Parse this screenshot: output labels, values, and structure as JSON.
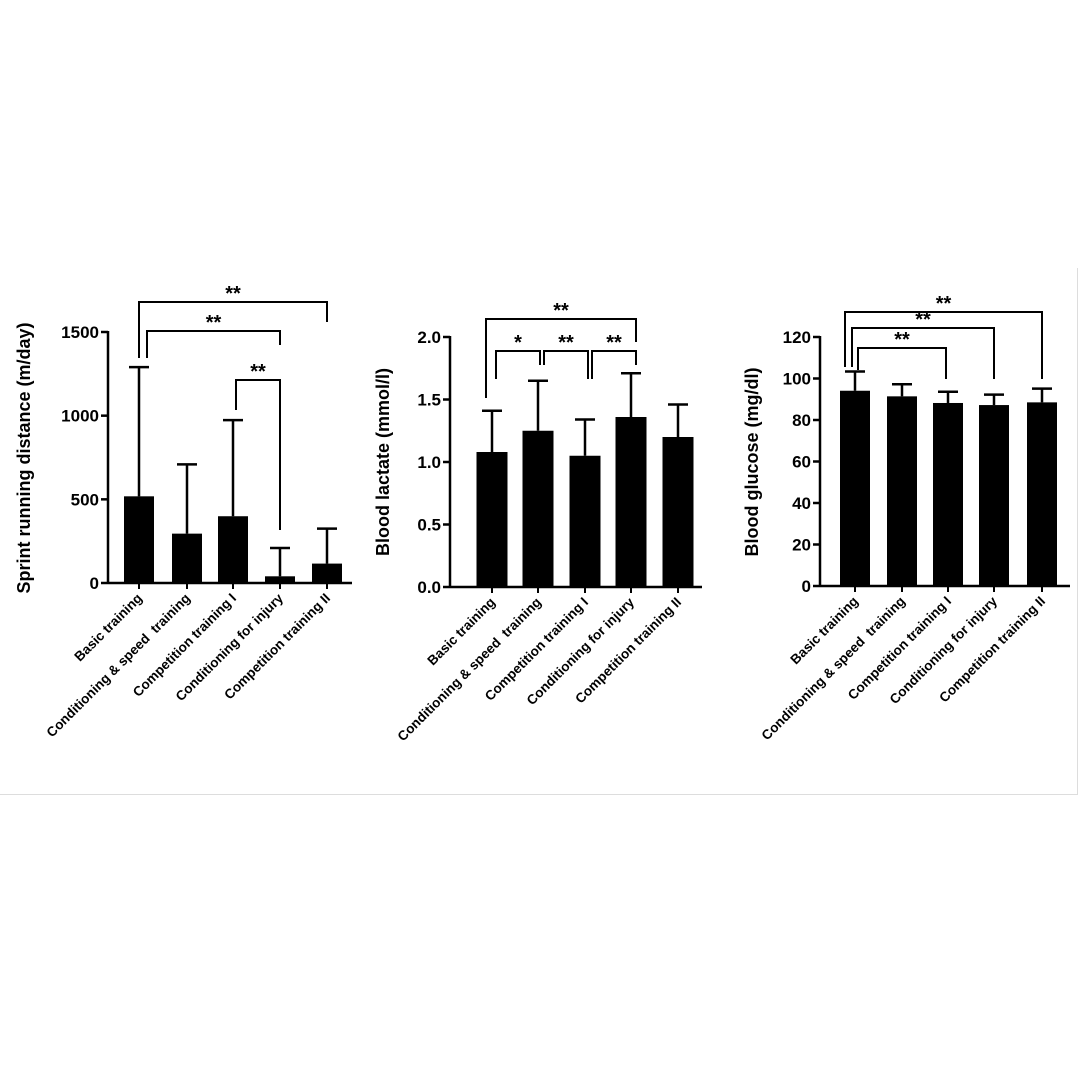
{
  "chart_data": [
    {
      "type": "bar",
      "ylabel": "Sprint running distance (m/day)",
      "categories": [
        "Basic training",
        "Conditioning & speed  training",
        "Competition training I",
        "Conditioning for injury",
        "Competition training II"
      ],
      "values": [
        518,
        295,
        399,
        40,
        116
      ],
      "error_upper": [
        1290,
        709,
        973,
        209,
        325
      ],
      "ylim": [
        0,
        1500
      ],
      "yticks": [
        "0",
        "500",
        "1000",
        "1500"
      ],
      "ytick_values": [
        0,
        500,
        1000,
        1500
      ],
      "bar_color": "#000000",
      "significance": [
        {
          "pair": [
            1,
            5
          ],
          "label": "**"
        },
        {
          "pair": [
            1,
            4
          ],
          "label": "**"
        },
        {
          "pair": [
            3,
            4
          ],
          "label": "**"
        }
      ]
    },
    {
      "type": "bar",
      "ylabel": "Blood lactate (mmol/l)",
      "categories": [
        "Basic training",
        "Conditioning & speed  training",
        "Competition training I",
        "Conditioning for injury",
        "Competition training II"
      ],
      "values": [
        1.08,
        1.25,
        1.05,
        1.36,
        1.2
      ],
      "error_upper": [
        1.41,
        1.65,
        1.34,
        1.71,
        1.46
      ],
      "ylim": [
        0,
        2.0
      ],
      "yticks": [
        "0.0",
        "0.5",
        "1.0",
        "1.5",
        "2.0"
      ],
      "ytick_values": [
        0,
        0.5,
        1.0,
        1.5,
        2.0
      ],
      "bar_color": "#000000",
      "significance": [
        {
          "pair": [
            1,
            4
          ],
          "label": "**"
        },
        {
          "pair": [
            1,
            2
          ],
          "label": "*"
        },
        {
          "pair": [
            2,
            3
          ],
          "label": "**"
        },
        {
          "pair": [
            3,
            4
          ],
          "label": "**"
        }
      ]
    },
    {
      "type": "bar",
      "ylabel": "Blood glucose (mg/dl)",
      "categories": [
        "Basic training",
        "Conditioning & speed  training",
        "Competition training I",
        "Conditioning for injury",
        "Competition training II"
      ],
      "values": [
        94.1,
        91.4,
        88.2,
        87.2,
        88.5
      ],
      "error_upper": [
        103.4,
        97.2,
        93.6,
        92.2,
        95.1
      ],
      "ylim": [
        0,
        120
      ],
      "yticks": [
        "0",
        "20",
        "40",
        "60",
        "80",
        "100",
        "120"
      ],
      "ytick_values": [
        0,
        20,
        40,
        60,
        80,
        100,
        120
      ],
      "bar_color": "#000000",
      "significance": [
        {
          "pair": [
            1,
            5
          ],
          "label": "**"
        },
        {
          "pair": [
            1,
            4
          ],
          "label": "**"
        },
        {
          "pair": [
            1,
            3
          ],
          "label": "**"
        }
      ]
    }
  ]
}
